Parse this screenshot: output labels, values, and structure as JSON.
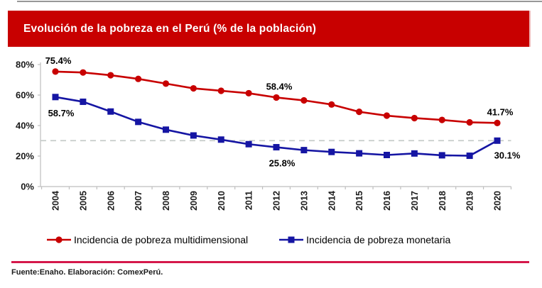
{
  "chart_data": {
    "type": "line",
    "title": "Evolución de la pobreza en el Perú (% de la población)",
    "x": [
      2004,
      2005,
      2006,
      2007,
      2008,
      2009,
      2010,
      2011,
      2012,
      2013,
      2014,
      2015,
      2016,
      2017,
      2018,
      2019,
      2020
    ],
    "xlabel": "",
    "ylabel": "",
    "ylim": [
      0,
      80
    ],
    "ytick_labels": [
      "0%",
      "20%",
      "40%",
      "60%",
      "80%"
    ],
    "grid": "off",
    "legend_position": "bottom",
    "reference_line": {
      "value": 30.1,
      "style": "dashed",
      "color": "#c6ccc9"
    },
    "axis_color": "#bfbfbf",
    "series": [
      {
        "name": "Incidencia de pobreza multidimensional",
        "color": "#c80000",
        "marker": "circle",
        "values": [
          75.4,
          74.8,
          73.0,
          70.6,
          67.5,
          64.4,
          62.8,
          61.2,
          58.4,
          56.5,
          53.8,
          49.0,
          46.5,
          44.9,
          43.7,
          42.1,
          41.7
        ]
      },
      {
        "name": "Incidencia de pobreza monetaria",
        "color": "#1515a3",
        "marker": "square",
        "values": [
          58.7,
          55.6,
          49.2,
          42.4,
          37.3,
          33.5,
          30.8,
          27.8,
          25.8,
          23.9,
          22.7,
          21.8,
          20.7,
          21.7,
          20.5,
          20.2,
          30.1
        ]
      }
    ],
    "point_labels": [
      {
        "series": 0,
        "x": 2004,
        "text": "75.4%",
        "position": "above"
      },
      {
        "series": 1,
        "x": 2004,
        "text": "58.7%",
        "position": "below"
      },
      {
        "series": 0,
        "x": 2012,
        "text": "58.4%",
        "position": "above"
      },
      {
        "series": 1,
        "x": 2012,
        "text": "25.8%",
        "position": "below"
      },
      {
        "series": 0,
        "x": 2020,
        "text": "41.7%",
        "position": "above"
      },
      {
        "series": 1,
        "x": 2020,
        "text": "30.1%",
        "position": "below-right"
      }
    ]
  },
  "banner": {
    "bg": "#c80000"
  },
  "footer": {
    "divider_color": "#d5184b"
  },
  "source": "Fuente:Enaho. Elaboración: ComexPerú."
}
